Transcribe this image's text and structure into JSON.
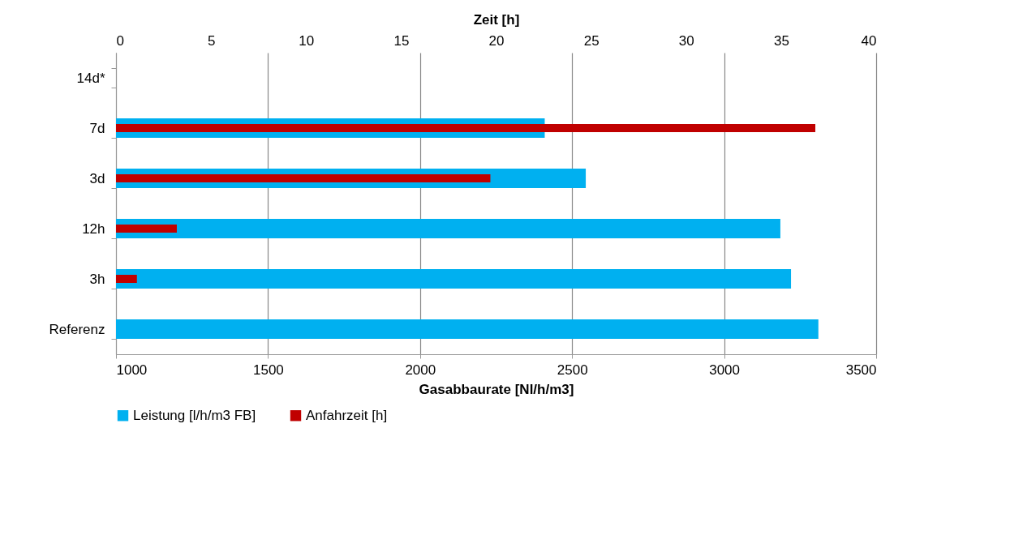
{
  "chart_data": {
    "type": "bar",
    "orientation": "horizontal",
    "categories": [
      "14d*",
      "7d",
      "3d",
      "12h",
      "3h",
      "Referenz"
    ],
    "series": [
      {
        "name": "Leistung [l/h/m3 FB]",
        "color": "#00b0f0",
        "values": [
          null,
          2410,
          2545,
          3185,
          3220,
          3310
        ]
      },
      {
        "name": "Anfahrzeit [h]",
        "color": "#c00000",
        "axis": "x2",
        "values": [
          null,
          36.8,
          19.7,
          3.2,
          1.1,
          null
        ]
      }
    ],
    "xlabel": "Gasabbaurate [Nl/h/m3]",
    "xlim": [
      1000,
      3500
    ],
    "xticks": [
      1000,
      1500,
      2000,
      2500,
      3000,
      3500
    ],
    "x2label": "Zeit [h]",
    "x2lim": [
      0,
      40
    ],
    "x2ticks": [
      0,
      5,
      10,
      15,
      20,
      25,
      30,
      35,
      40
    ],
    "grid": "x",
    "legend": "bottom"
  }
}
